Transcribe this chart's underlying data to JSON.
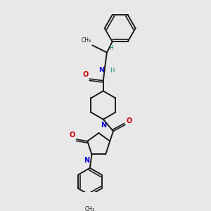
{
  "background_color": "#e8e8e8",
  "bond_color": "#1a1a1a",
  "nitrogen_color": "#0000cc",
  "oxygen_color": "#cc0000",
  "nh_color": "#008080",
  "figsize": [
    3.0,
    3.0
  ],
  "dpi": 100,
  "xlim": [
    1.5,
    8.5
  ],
  "ylim": [
    0.0,
    10.5
  ]
}
